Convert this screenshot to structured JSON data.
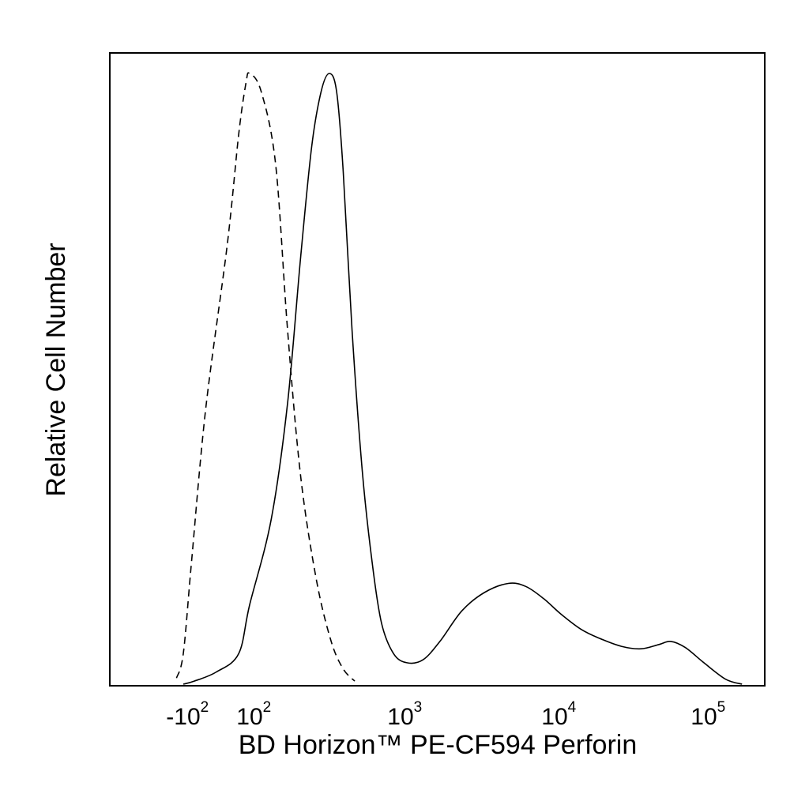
{
  "chart_data": {
    "type": "line",
    "title": "",
    "xlabel": "BD Horizon™ PE-CF594 Perforin",
    "ylabel": "Relative Cell Number",
    "x_scale": "biexponential (logicle)",
    "grid": false,
    "legend": "none",
    "x_ticks": [
      {
        "base": "-10",
        "exp": "2",
        "value": -100
      },
      {
        "base": "10",
        "exp": "2",
        "value": 100
      },
      {
        "base": "10",
        "exp": "3",
        "value": 1000
      },
      {
        "base": "10",
        "exp": "4",
        "value": 10000
      },
      {
        "base": "10",
        "exp": "5",
        "value": 100000
      }
    ],
    "series": [
      {
        "line_style": "dashed",
        "color": "#000000",
        "x": [
          -150,
          -100,
          -60,
          -20,
          20,
          50,
          80,
          100,
          120,
          150,
          180,
          220,
          280,
          350,
          420,
          500
        ],
        "y": [
          0.01,
          0.05,
          0.2,
          0.45,
          0.72,
          0.9,
          0.985,
          1.0,
          0.97,
          0.85,
          0.58,
          0.34,
          0.17,
          0.07,
          0.025,
          0.005
        ]
      },
      {
        "line_style": "solid",
        "color": "#000000",
        "x": [
          -100,
          -50,
          0,
          50,
          100,
          140,
          180,
          220,
          260,
          300,
          340,
          380,
          420,
          480,
          560,
          650,
          750,
          900,
          1100,
          1400,
          1800,
          2500,
          3500,
          5000,
          6500,
          8500,
          11000,
          15000,
          20000,
          28000,
          38000,
          50000,
          60000,
          75000,
          100000,
          140000,
          180000
        ],
        "y": [
          0.0,
          0.005,
          0.02,
          0.05,
          0.13,
          0.27,
          0.46,
          0.7,
          0.88,
          0.97,
          1.0,
          0.97,
          0.84,
          0.58,
          0.35,
          0.2,
          0.1,
          0.05,
          0.035,
          0.04,
          0.07,
          0.12,
          0.15,
          0.165,
          0.16,
          0.14,
          0.115,
          0.09,
          0.075,
          0.062,
          0.058,
          0.065,
          0.07,
          0.06,
          0.035,
          0.008,
          0.0
        ]
      }
    ]
  }
}
